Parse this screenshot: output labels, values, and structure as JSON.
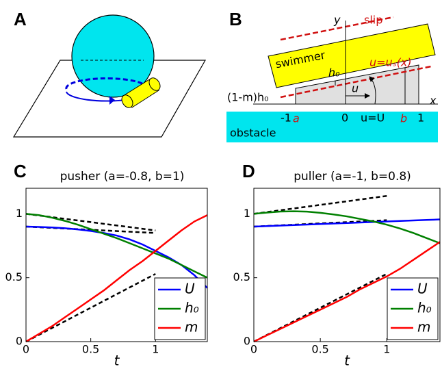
{
  "panel_labels": [
    "A",
    "B",
    "C",
    "D"
  ],
  "diagram": {
    "y_axis": "y",
    "slip": "slip",
    "swimmer": "swimmer",
    "h0": "h₀",
    "us": "u=uₛ(x)",
    "u": "u",
    "gap": "(1-m)h₀",
    "x_axis": "x",
    "minus_one": "-1",
    "a": "a",
    "zero": "0",
    "uU": "u=U",
    "b": "b",
    "one": "1",
    "obstacle": "obstacle"
  },
  "chart_data": [
    {
      "type": "line",
      "title": "pusher (a=-0.8, b=1)",
      "xlabel": "t",
      "x": [
        0,
        0.1,
        0.2,
        0.3,
        0.4,
        0.5,
        0.6,
        0.7,
        0.8,
        0.9,
        1.0,
        1.1,
        1.2,
        1.3,
        1.4
      ],
      "series": [
        {
          "name": "U",
          "color": "#0000ff",
          "values": [
            0.9,
            0.897,
            0.893,
            0.887,
            0.878,
            0.866,
            0.85,
            0.83,
            0.8,
            0.76,
            0.71,
            0.66,
            0.6,
            0.52,
            0.42
          ]
        },
        {
          "name": "h₀",
          "color": "#008000",
          "values": [
            1.0,
            0.99,
            0.97,
            0.945,
            0.915,
            0.88,
            0.845,
            0.81,
            0.77,
            0.73,
            0.69,
            0.65,
            0.6,
            0.55,
            0.5
          ]
        },
        {
          "name": "m",
          "color": "#ff0000",
          "values": [
            0,
            0.06,
            0.12,
            0.19,
            0.26,
            0.33,
            0.4,
            0.48,
            0.56,
            0.63,
            0.71,
            0.79,
            0.87,
            0.94,
            0.99
          ]
        }
      ],
      "reference_lines": {
        "color": "#000000",
        "style": "dashed",
        "lines": [
          {
            "x": [
              0,
              1
            ],
            "values": [
              1.0,
              0.87
            ]
          },
          {
            "x": [
              0,
              1
            ],
            "values": [
              0.9,
              0.85
            ]
          },
          {
            "x": [
              0,
              1
            ],
            "values": [
              0,
              0.53
            ]
          }
        ]
      },
      "xlim": [
        0,
        1.4
      ],
      "ylim": [
        0,
        1.2
      ],
      "xticks": [
        0,
        0.5,
        1
      ],
      "yticks": [
        0,
        0.5,
        1
      ],
      "legend": "lower right"
    },
    {
      "type": "line",
      "title": "puller (a=-1, b=0.8)",
      "xlabel": "t",
      "x": [
        0,
        0.1,
        0.2,
        0.3,
        0.4,
        0.5,
        0.6,
        0.7,
        0.8,
        0.9,
        1.0,
        1.1,
        1.2,
        1.3,
        1.4
      ],
      "series": [
        {
          "name": "U",
          "color": "#0000ff",
          "values": [
            0.9,
            0.904,
            0.908,
            0.912,
            0.916,
            0.92,
            0.924,
            0.928,
            0.932,
            0.936,
            0.94,
            0.944,
            0.948,
            0.952,
            0.956
          ]
        },
        {
          "name": "h₀",
          "color": "#008000",
          "values": [
            1.0,
            1.01,
            1.018,
            1.02,
            1.017,
            1.008,
            0.995,
            0.98,
            0.96,
            0.94,
            0.915,
            0.885,
            0.85,
            0.81,
            0.77
          ]
        },
        {
          "name": "m",
          "color": "#ff0000",
          "values": [
            0,
            0.05,
            0.1,
            0.15,
            0.2,
            0.25,
            0.3,
            0.35,
            0.41,
            0.46,
            0.51,
            0.57,
            0.64,
            0.71,
            0.78
          ]
        }
      ],
      "reference_lines": {
        "color": "#000000",
        "style": "dashed",
        "lines": [
          {
            "x": [
              0,
              1
            ],
            "values": [
              1.0,
              1.14
            ]
          },
          {
            "x": [
              0,
              1
            ],
            "values": [
              0.9,
              0.95
            ]
          },
          {
            "x": [
              0,
              1
            ],
            "values": [
              0,
              0.53
            ]
          }
        ]
      },
      "xlim": [
        0,
        1.4
      ],
      "ylim": [
        0,
        1.2
      ],
      "xticks": [
        0,
        0.5,
        1
      ],
      "yticks": [
        0,
        0.5,
        1
      ],
      "legend": "lower right"
    }
  ]
}
